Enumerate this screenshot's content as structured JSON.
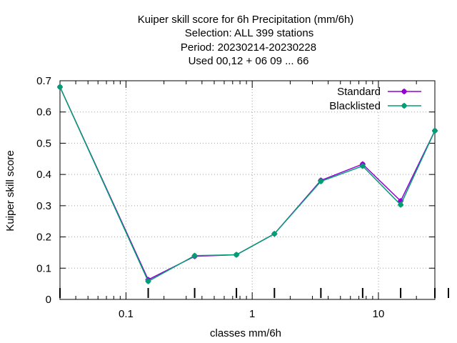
{
  "chart_data": {
    "type": "line",
    "title": "Kuiper skill score  for 6h Precipitation (mm/6h)",
    "subtitle": [
      "Selection: ALL    399 stations",
      "Period: 20230214-20230228",
      "Used  00,12  + 06 09 ... 66"
    ],
    "xlabel": "classes mm/6h",
    "ylabel": "Kuiper skill score",
    "x_scale": "log",
    "xlim": [
      0.03,
      28
    ],
    "ylim": [
      0,
      0.7
    ],
    "x_ticks": [
      {
        "value": 0.1,
        "label": "0.1"
      },
      {
        "value": 1,
        "label": "1"
      },
      {
        "value": 10,
        "label": "10"
      }
    ],
    "y_ticks": [
      {
        "value": 0,
        "label": "0"
      },
      {
        "value": 0.1,
        "label": "0.1"
      },
      {
        "value": 0.2,
        "label": "0.2"
      },
      {
        "value": 0.3,
        "label": "0.3"
      },
      {
        "value": 0.4,
        "label": "0.4"
      },
      {
        "value": 0.5,
        "label": "0.5"
      },
      {
        "value": 0.6,
        "label": "0.6"
      },
      {
        "value": 0.7,
        "label": "0.7"
      }
    ],
    "grid": true,
    "legend_position": "top-right",
    "x": [
      0.03,
      0.15,
      0.35,
      0.75,
      1.5,
      3.5,
      7.5,
      15,
      28
    ],
    "series": [
      {
        "name": "Standard",
        "color": "#9400d3",
        "values": [
          0.68,
          0.063,
          0.138,
          0.143,
          0.21,
          0.381,
          0.433,
          0.315,
          0.54
        ]
      },
      {
        "name": "Blacklisted",
        "color": "#009e73",
        "values": [
          0.68,
          0.058,
          0.14,
          0.143,
          0.21,
          0.378,
          0.427,
          0.303,
          0.54
        ]
      }
    ]
  }
}
